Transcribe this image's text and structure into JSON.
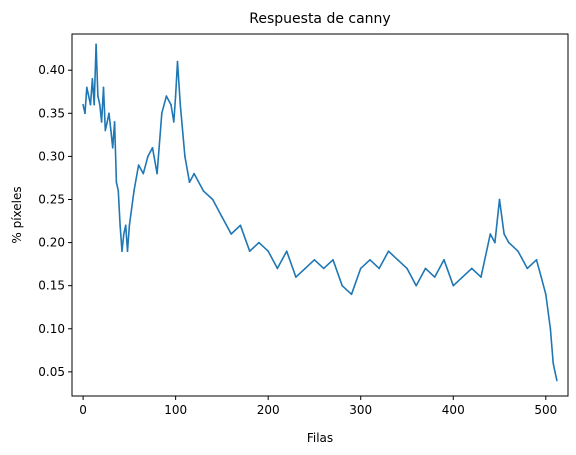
{
  "chart_data": {
    "type": "line",
    "title": "Respuesta de canny",
    "xlabel": "Filas",
    "ylabel": "% píxeles",
    "xlim": [
      -12,
      524
    ],
    "ylim": [
      0.022,
      0.442
    ],
    "xticks": [
      0,
      100,
      200,
      300,
      400,
      500
    ],
    "yticks": [
      0.05,
      0.1,
      0.15,
      0.2,
      0.25,
      0.3,
      0.35,
      0.4
    ],
    "ytick_labels": [
      "0.05",
      "0.10",
      "0.15",
      "0.20",
      "0.25",
      "0.30",
      "0.35",
      "0.40"
    ],
    "grid": false,
    "series": [
      {
        "color": "#1f77b4",
        "x": [
          0,
          2,
          4,
          6,
          8,
          10,
          12,
          14,
          16,
          18,
          20,
          22,
          24,
          26,
          28,
          30,
          32,
          34,
          36,
          38,
          40,
          42,
          44,
          46,
          48,
          50,
          55,
          60,
          65,
          70,
          75,
          80,
          85,
          90,
          95,
          98,
          100,
          102,
          105,
          110,
          115,
          120,
          130,
          140,
          150,
          160,
          170,
          180,
          190,
          200,
          210,
          220,
          230,
          240,
          250,
          260,
          270,
          280,
          290,
          300,
          310,
          320,
          330,
          340,
          350,
          360,
          370,
          380,
          390,
          400,
          410,
          420,
          430,
          440,
          445,
          450,
          455,
          460,
          470,
          480,
          490,
          495,
          500,
          505,
          508,
          510,
          512
        ],
        "y": [
          0.36,
          0.35,
          0.38,
          0.37,
          0.36,
          0.39,
          0.36,
          0.43,
          0.37,
          0.36,
          0.34,
          0.38,
          0.33,
          0.34,
          0.35,
          0.33,
          0.31,
          0.34,
          0.27,
          0.26,
          0.22,
          0.19,
          0.21,
          0.22,
          0.19,
          0.22,
          0.26,
          0.29,
          0.28,
          0.3,
          0.31,
          0.28,
          0.35,
          0.37,
          0.36,
          0.34,
          0.37,
          0.41,
          0.36,
          0.3,
          0.27,
          0.28,
          0.26,
          0.25,
          0.23,
          0.21,
          0.22,
          0.19,
          0.2,
          0.19,
          0.17,
          0.19,
          0.16,
          0.17,
          0.18,
          0.17,
          0.18,
          0.15,
          0.14,
          0.17,
          0.18,
          0.17,
          0.19,
          0.18,
          0.17,
          0.15,
          0.17,
          0.16,
          0.18,
          0.15,
          0.16,
          0.17,
          0.16,
          0.21,
          0.2,
          0.25,
          0.21,
          0.2,
          0.19,
          0.17,
          0.18,
          0.16,
          0.14,
          0.1,
          0.06,
          0.05,
          0.04
        ]
      }
    ]
  }
}
